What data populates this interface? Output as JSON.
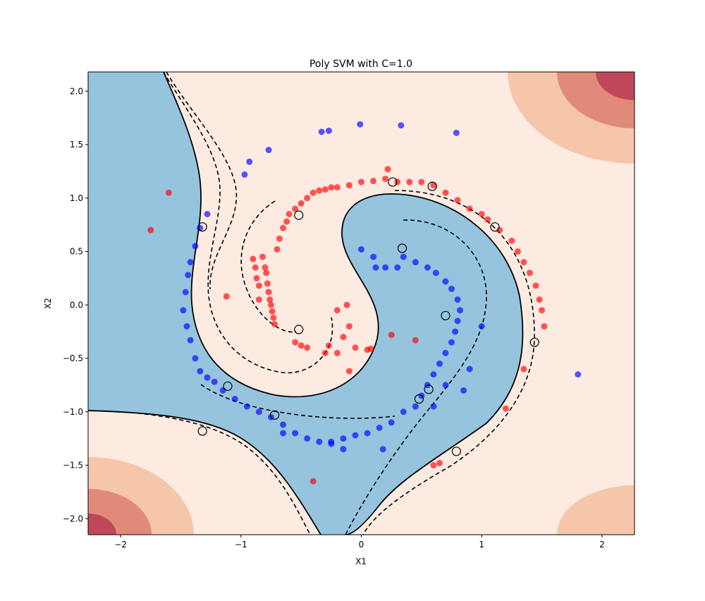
{
  "chart_data": {
    "type": "scatter",
    "title": "Poly SVM with C=1.0",
    "xlabel": "X1",
    "ylabel": "X2",
    "xlim": [
      -2.27,
      2.27
    ],
    "ylim": [
      -2.15,
      2.18
    ],
    "xticks": [
      -2,
      -1,
      0,
      1,
      2
    ],
    "xtick_labels": [
      "−2",
      "−1",
      "0",
      "1",
      "2"
    ],
    "yticks": [
      -2.0,
      -1.5,
      -1.0,
      -0.5,
      0.0,
      0.5,
      1.0,
      1.5,
      2.0
    ],
    "ytick_labels": [
      "−2.0",
      "−1.5",
      "−1.0",
      "−0.5",
      "0.0",
      "0.5",
      "1.0",
      "1.5",
      "2.0"
    ],
    "grid": false,
    "colors": {
      "region_positive": "#fdebe2",
      "region_negative": "#96c4de",
      "contour_band_1": "#f6c6aa",
      "contour_band_2": "#e28a7a",
      "contour_band_3": "#c0475a",
      "class_red": "#ff0000",
      "class_blue": "#0000ff",
      "boundary": "#000000"
    },
    "decision_boundary": [
      {
        "x": [
          -2.27,
          -1.8,
          -1.4,
          -1.1,
          -0.9,
          -0.75,
          -0.62,
          -0.5,
          -0.45
        ],
        "y": [
          -1.0,
          -1.02,
          -1.1,
          -1.3,
          -1.55,
          -1.8,
          -2.0,
          -2.15,
          -2.2
        ]
      },
      {
        "x": [
          0.05,
          0.3,
          0.55,
          0.85,
          1.1,
          1.3,
          1.4,
          1.44,
          1.45
        ],
        "y": [
          -2.2,
          -1.9,
          -1.65,
          -1.45,
          -1.2,
          -0.9,
          -0.6,
          -0.4,
          -0.3
        ]
      },
      {
        "x": [
          -1.4,
          -1.3,
          -1.2,
          -1.15,
          -1.1,
          -1.2,
          -1.35,
          -1.55,
          -1.75,
          -1.85
        ],
        "y": [
          -0.72,
          -0.4,
          0.0,
          0.4,
          0.7,
          1.1,
          1.45,
          1.8,
          2.1,
          2.2
        ]
      },
      {
        "x": [
          0.1,
          0.0,
          -0.1,
          -0.3,
          -0.5,
          -0.7,
          -0.85,
          -0.92,
          -0.95
        ],
        "y": [
          -0.55,
          -0.2,
          0.2,
          0.5,
          0.72,
          0.8,
          0.75,
          0.6,
          0.45
        ]
      }
    ],
    "series": [
      {
        "name": "",
        "color": "#ff0000",
        "points": [
          [
            -1.75,
            0.7
          ],
          [
            -1.6,
            1.05
          ],
          [
            -1.12,
            0.08
          ],
          [
            -0.9,
            0.43
          ],
          [
            -0.88,
            0.35
          ],
          [
            -0.87,
            0.25
          ],
          [
            -0.85,
            0.18
          ],
          [
            -0.85,
            0.05
          ],
          [
            -0.82,
            0.45
          ],
          [
            -0.8,
            0.35
          ],
          [
            -0.79,
            0.3
          ],
          [
            -0.78,
            0.2
          ],
          [
            -0.77,
            0.12
          ],
          [
            -0.76,
            0.05
          ],
          [
            -0.75,
            0.0
          ],
          [
            -0.74,
            -0.06
          ],
          [
            -0.73,
            -0.12
          ],
          [
            -0.72,
            -0.18
          ],
          [
            -0.7,
            0.52
          ],
          [
            -0.68,
            0.62
          ],
          [
            -0.65,
            0.72
          ],
          [
            -0.62,
            0.78
          ],
          [
            -0.6,
            0.85
          ],
          [
            -0.55,
            0.9
          ],
          [
            -0.5,
            0.95
          ],
          [
            -0.45,
            1.0
          ],
          [
            -0.4,
            1.05
          ],
          [
            -0.35,
            1.07
          ],
          [
            -0.3,
            1.08
          ],
          [
            -0.25,
            1.1
          ],
          [
            -0.2,
            1.1
          ],
          [
            -0.1,
            1.12
          ],
          [
            0.0,
            1.15
          ],
          [
            0.1,
            1.16
          ],
          [
            0.2,
            1.18
          ],
          [
            0.22,
            1.27
          ],
          [
            0.3,
            1.15
          ],
          [
            0.4,
            1.15
          ],
          [
            0.5,
            1.15
          ],
          [
            0.6,
            1.12
          ],
          [
            0.7,
            1.05
          ],
          [
            0.8,
            0.98
          ],
          [
            0.9,
            0.9
          ],
          [
            1.0,
            0.85
          ],
          [
            1.05,
            0.8
          ],
          [
            1.15,
            0.7
          ],
          [
            1.25,
            0.6
          ],
          [
            1.3,
            0.5
          ],
          [
            1.35,
            0.4
          ],
          [
            1.4,
            0.3
          ],
          [
            1.45,
            0.18
          ],
          [
            1.48,
            0.05
          ],
          [
            1.5,
            -0.05
          ],
          [
            1.52,
            -0.2
          ],
          [
            1.35,
            -0.6
          ],
          [
            1.2,
            -0.97
          ],
          [
            0.6,
            -1.5
          ],
          [
            0.65,
            -1.48
          ],
          [
            -0.4,
            -1.65
          ],
          [
            -0.55,
            -0.35
          ],
          [
            -0.5,
            -0.38
          ],
          [
            -0.45,
            -0.4
          ],
          [
            -0.3,
            -0.45
          ],
          [
            -0.27,
            -0.38
          ],
          [
            -0.2,
            -0.45
          ],
          [
            -0.15,
            -0.3
          ],
          [
            -0.1,
            -0.2
          ],
          [
            -0.05,
            -0.4
          ],
          [
            -0.1,
            -0.62
          ],
          [
            0.05,
            -0.42
          ],
          [
            0.08,
            -0.41
          ],
          [
            0.25,
            -0.28
          ],
          [
            0.45,
            -0.33
          ],
          [
            -0.12,
            0.0
          ],
          [
            -0.2,
            -0.05
          ]
        ]
      },
      {
        "name": "",
        "color": "#0000ff",
        "points": [
          [
            -0.97,
            1.22
          ],
          [
            -0.93,
            1.34
          ],
          [
            -0.77,
            1.45
          ],
          [
            -0.33,
            1.62
          ],
          [
            -0.27,
            1.63
          ],
          [
            -0.01,
            1.69
          ],
          [
            0.33,
            1.68
          ],
          [
            0.79,
            1.61
          ],
          [
            1.8,
            -0.65
          ],
          [
            -1.28,
            0.85
          ],
          [
            -1.34,
            0.72
          ],
          [
            -1.38,
            0.55
          ],
          [
            -1.42,
            0.4
          ],
          [
            -1.44,
            0.28
          ],
          [
            -1.46,
            0.12
          ],
          [
            -1.48,
            -0.05
          ],
          [
            -1.45,
            -0.2
          ],
          [
            -1.42,
            -0.33
          ],
          [
            -1.38,
            -0.5
          ],
          [
            -1.34,
            -0.62
          ],
          [
            -1.28,
            -0.68
          ],
          [
            -1.22,
            -0.72
          ],
          [
            -1.15,
            -0.8
          ],
          [
            -1.05,
            -0.88
          ],
          [
            -0.95,
            -0.95
          ],
          [
            -0.85,
            -1.0
          ],
          [
            -0.75,
            -1.05
          ],
          [
            -0.65,
            -1.12
          ],
          [
            -0.55,
            -1.2
          ],
          [
            -0.45,
            -1.25
          ],
          [
            -0.35,
            -1.28
          ],
          [
            -0.25,
            -1.28
          ],
          [
            -0.15,
            -1.25
          ],
          [
            -0.05,
            -1.22
          ],
          [
            0.05,
            -1.2
          ],
          [
            0.15,
            -1.15
          ],
          [
            0.25,
            -1.1
          ],
          [
            0.35,
            -1.0
          ],
          [
            0.45,
            -0.95
          ],
          [
            0.5,
            -0.85
          ],
          [
            0.55,
            -0.75
          ],
          [
            0.6,
            -0.65
          ],
          [
            0.65,
            -0.55
          ],
          [
            0.7,
            -0.45
          ],
          [
            0.75,
            -0.35
          ],
          [
            0.78,
            -0.25
          ],
          [
            0.8,
            -0.15
          ],
          [
            0.82,
            -0.05
          ],
          [
            0.8,
            0.05
          ],
          [
            0.75,
            0.15
          ],
          [
            0.7,
            0.22
          ],
          [
            0.62,
            0.3
          ],
          [
            0.55,
            0.35
          ],
          [
            0.45,
            0.4
          ],
          [
            0.35,
            0.45
          ],
          [
            0.0,
            0.52
          ],
          [
            0.1,
            0.45
          ],
          [
            0.12,
            0.35
          ],
          [
            0.2,
            0.35
          ],
          [
            0.3,
            0.35
          ],
          [
            -0.15,
            -1.35
          ],
          [
            0.18,
            -1.35
          ],
          [
            -0.25,
            -1.3
          ],
          [
            0.9,
            -0.6
          ],
          [
            1.0,
            -0.2
          ],
          [
            0.85,
            -0.8
          ],
          [
            0.6,
            -0.95
          ],
          [
            0.7,
            -0.75
          ],
          [
            -0.65,
            -1.2
          ]
        ]
      }
    ],
    "support_vectors": [
      [
        0.26,
        1.15
      ],
      [
        0.59,
        1.11
      ],
      [
        1.11,
        0.73
      ],
      [
        1.44,
        -0.35
      ],
      [
        -0.52,
        0.84
      ],
      [
        -1.32,
        0.73
      ],
      [
        0.34,
        0.53
      ],
      [
        0.7,
        -0.1
      ],
      [
        -0.52,
        -0.23
      ],
      [
        0.56,
        -0.79
      ],
      [
        0.48,
        -0.88
      ],
      [
        -1.11,
        -0.76
      ],
      [
        -0.72,
        -1.03
      ],
      [
        -1.32,
        -1.18
      ],
      [
        0.79,
        -1.37
      ]
    ]
  }
}
